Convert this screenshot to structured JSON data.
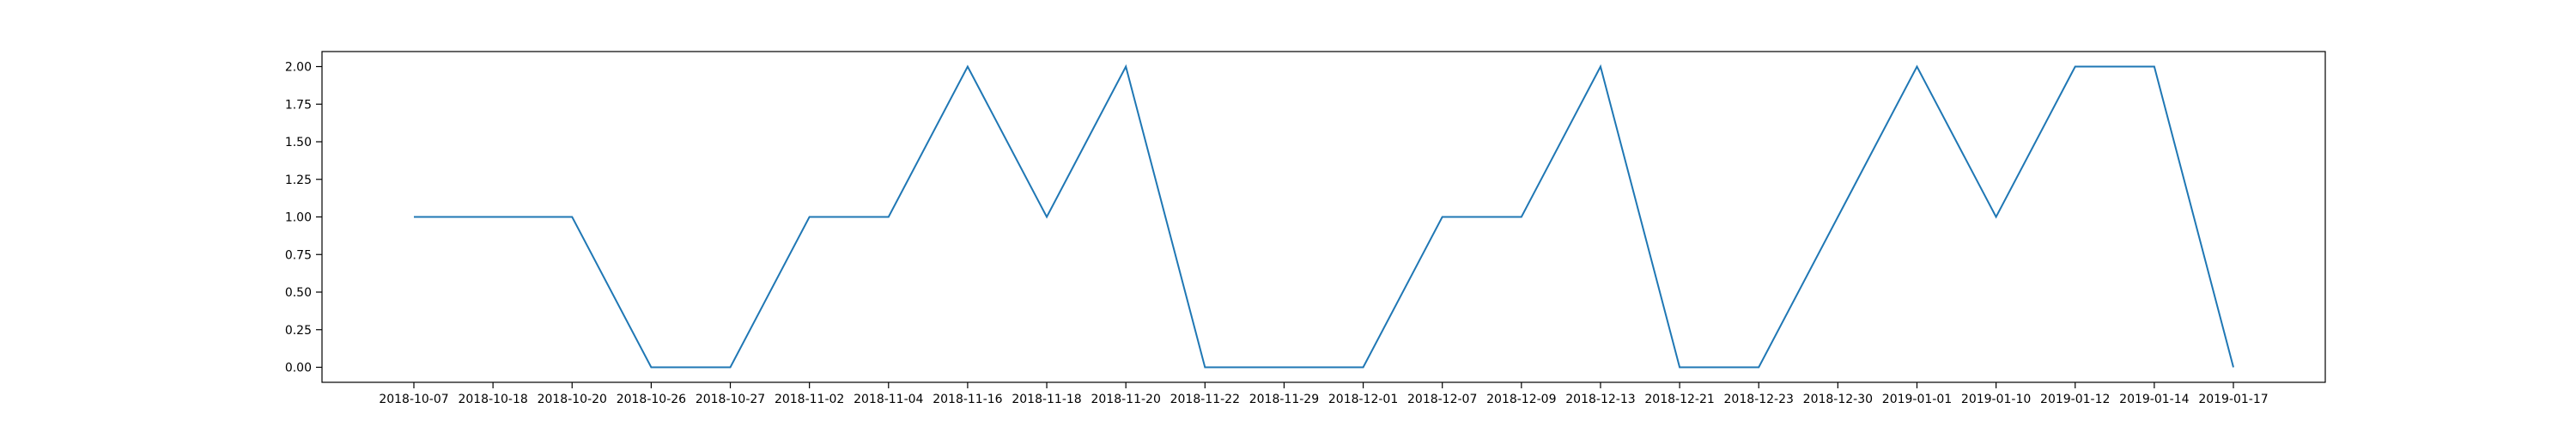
{
  "chart_data": {
    "type": "line",
    "title": "",
    "xlabel": "",
    "ylabel": "",
    "categories": [
      "2018-10-07",
      "2018-10-18",
      "2018-10-20",
      "2018-10-26",
      "2018-10-27",
      "2018-11-02",
      "2018-11-04",
      "2018-11-16",
      "2018-11-18",
      "2018-11-20",
      "2018-11-22",
      "2018-11-29",
      "2018-12-01",
      "2018-12-07",
      "2018-12-09",
      "2018-12-13",
      "2018-12-21",
      "2018-12-23",
      "2018-12-30",
      "2019-01-01",
      "2019-01-10",
      "2019-01-12",
      "2019-01-14",
      "2019-01-17"
    ],
    "series": [
      {
        "values": [
          1,
          1,
          1,
          0,
          0,
          1,
          1,
          2,
          1,
          2,
          0,
          0,
          0,
          1,
          1,
          2,
          0,
          0,
          1,
          2,
          1,
          2,
          2,
          0
        ]
      }
    ],
    "yticks": [
      "0.00",
      "0.25",
      "0.50",
      "0.75",
      "1.00",
      "1.25",
      "1.50",
      "1.75",
      "2.00"
    ],
    "ylim": [
      -0.1,
      2.1
    ],
    "grid": false,
    "legend": "none",
    "colors": {
      "line": "#1f77b4",
      "axes": "#000000",
      "background": "#ffffff"
    }
  }
}
